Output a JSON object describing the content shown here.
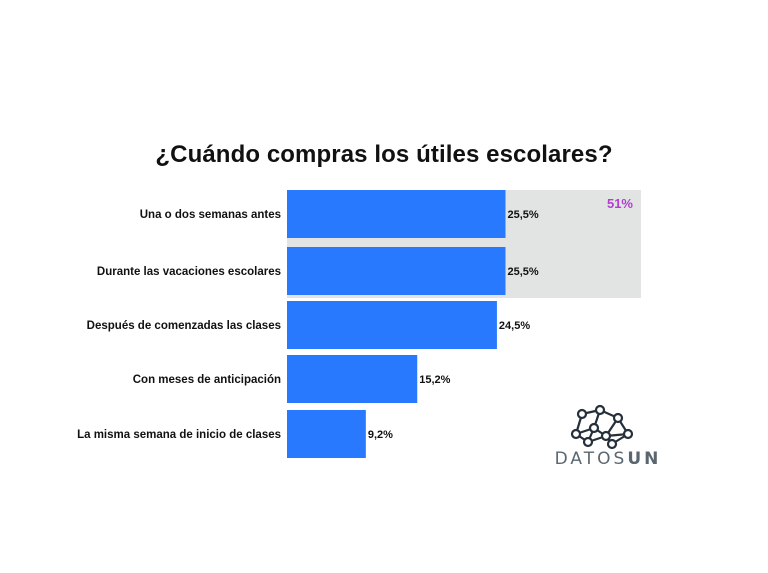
{
  "chart_data": {
    "type": "bar",
    "orientation": "horizontal",
    "title": "¿Cuándo compras los útiles escolares?",
    "categories": [
      "Una o dos semanas antes",
      "Durante las vacaciones escolares",
      "Después de comenzadas las clases",
      "Con meses de anticipación",
      "La misma semana de inicio de clases"
    ],
    "values": [
      25.5,
      25.5,
      24.5,
      15.2,
      9.2
    ],
    "value_labels": [
      "25,5%",
      "25,5%",
      "24,5%",
      "15,2%",
      "9,2%"
    ],
    "highlight": {
      "categories": [
        "Una o dos semanas antes",
        "Durante las vacaciones escolares"
      ],
      "label": "51%"
    },
    "colors": {
      "bar": "#2979ff",
      "highlight_bg": "#e2e3e3",
      "highlight_text": "#b03fcf"
    }
  },
  "brand": {
    "logo_text_light": "DATOS",
    "logo_text_bold": "UN",
    "logo_icon": "network-nodes-icon"
  }
}
